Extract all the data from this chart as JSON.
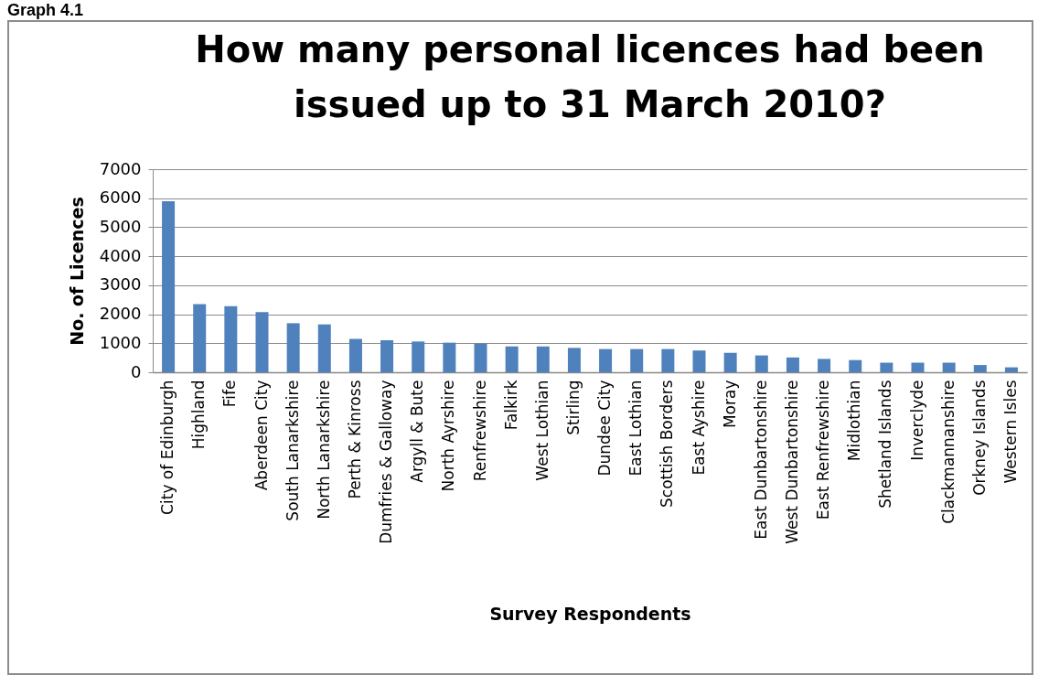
{
  "chart_data": {
    "type": "bar",
    "title": [
      "How many personal licences had been",
      "issued up to 31 March 2010?"
    ],
    "xlabel": "Survey Respondents",
    "ylabel": "No. of Licences",
    "annotations": [
      "Graph 4.1"
    ],
    "categories": [
      "City of Edinburgh",
      "Highland",
      "Fife",
      "Aberdeen City",
      "South Lanarkshire",
      "North Lanarkshire",
      "Perth & Kinross",
      "Dumfries & Galloway",
      "Argyll & Bute",
      "North Ayrshire",
      "Renfrewshire",
      "Falkirk",
      "West Lothian",
      "Stirling",
      "Dundee City",
      "East Lothian",
      "Scottish Borders",
      "East Ayshire",
      "Moray",
      "East Dunbartonshire",
      "West Dunbartonshire",
      "East Renfrewshire",
      "Midlothian",
      "Shetland Islands",
      "Inverclyde",
      "Clackmannanshire",
      "Orkney Islands",
      "Western Isles"
    ],
    "values": [
      5900,
      2350,
      2280,
      2070,
      1690,
      1650,
      1150,
      1100,
      1060,
      1020,
      990,
      890,
      890,
      840,
      800,
      800,
      800,
      750,
      670,
      580,
      510,
      460,
      420,
      330,
      330,
      330,
      250,
      170
    ],
    "color": "#4f81bd",
    "ylim": [
      0,
      7000
    ],
    "yticks": [
      0,
      1000,
      2000,
      3000,
      4000,
      5000,
      6000,
      7000
    ],
    "grid": "y"
  }
}
